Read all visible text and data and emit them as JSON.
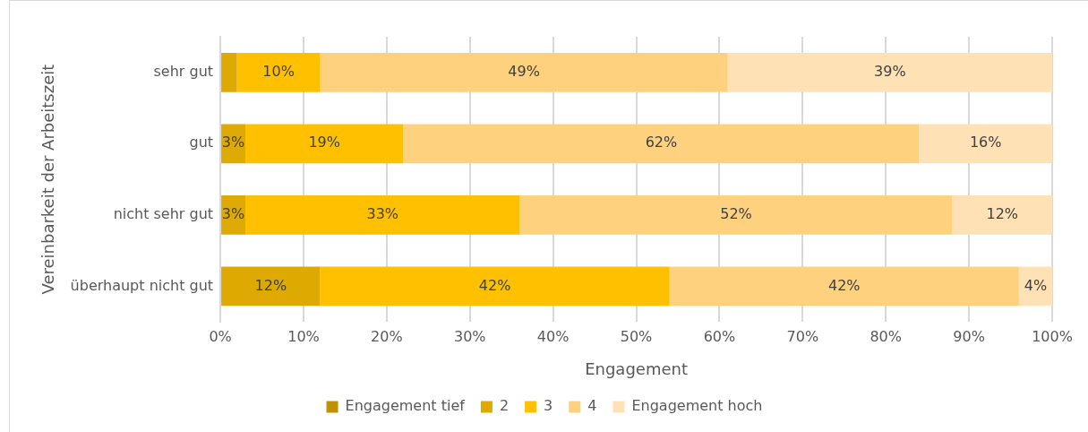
{
  "chart_data": {
    "type": "bar",
    "orientation": "horizontal",
    "stacked": true,
    "categories": [
      "sehr gut",
      "gut",
      "nicht sehr gut",
      "überhaupt nicht gut"
    ],
    "series": [
      {
        "name": "Engagement tief",
        "color": "#bf9000",
        "values": [
          0,
          0,
          0,
          0
        ],
        "value_labels": [
          null,
          null,
          null,
          null
        ]
      },
      {
        "name": "2",
        "color": "#dea900",
        "values": [
          2,
          3,
          3,
          12
        ],
        "value_labels": [
          null,
          "3%",
          "3%",
          "12%"
        ]
      },
      {
        "name": "3",
        "color": "#ffc000",
        "values": [
          10,
          19,
          33,
          42
        ],
        "value_labels": [
          "10%",
          "19%",
          "33%",
          "42%"
        ]
      },
      {
        "name": "4",
        "color": "#fed17f",
        "values": [
          49,
          62,
          52,
          42
        ],
        "value_labels": [
          "49%",
          "62%",
          "52%",
          "42%"
        ]
      },
      {
        "name": "Engagement hoch",
        "color": "#fee2b5",
        "values": [
          39,
          16,
          12,
          4
        ],
        "value_labels": [
          "39%",
          "16%",
          "12%",
          "4%"
        ]
      }
    ],
    "xlim": [
      0,
      100
    ],
    "xticks": [
      {
        "value": 0,
        "label": "0%"
      },
      {
        "value": 10,
        "label": "10%"
      },
      {
        "value": 20,
        "label": "20%"
      },
      {
        "value": 30,
        "label": "30%"
      },
      {
        "value": 40,
        "label": "40%"
      },
      {
        "value": 50,
        "label": "50%"
      },
      {
        "value": 60,
        "label": "60%"
      },
      {
        "value": 70,
        "label": "70%"
      },
      {
        "value": 80,
        "label": "80%"
      },
      {
        "value": 90,
        "label": "90%"
      },
      {
        "value": 100,
        "label": "100%"
      }
    ],
    "xlabel": "Engagement",
    "ylabel": "Vereinbarkeit der Arbeitszeit",
    "grid": "x",
    "legend": "bottom"
  }
}
